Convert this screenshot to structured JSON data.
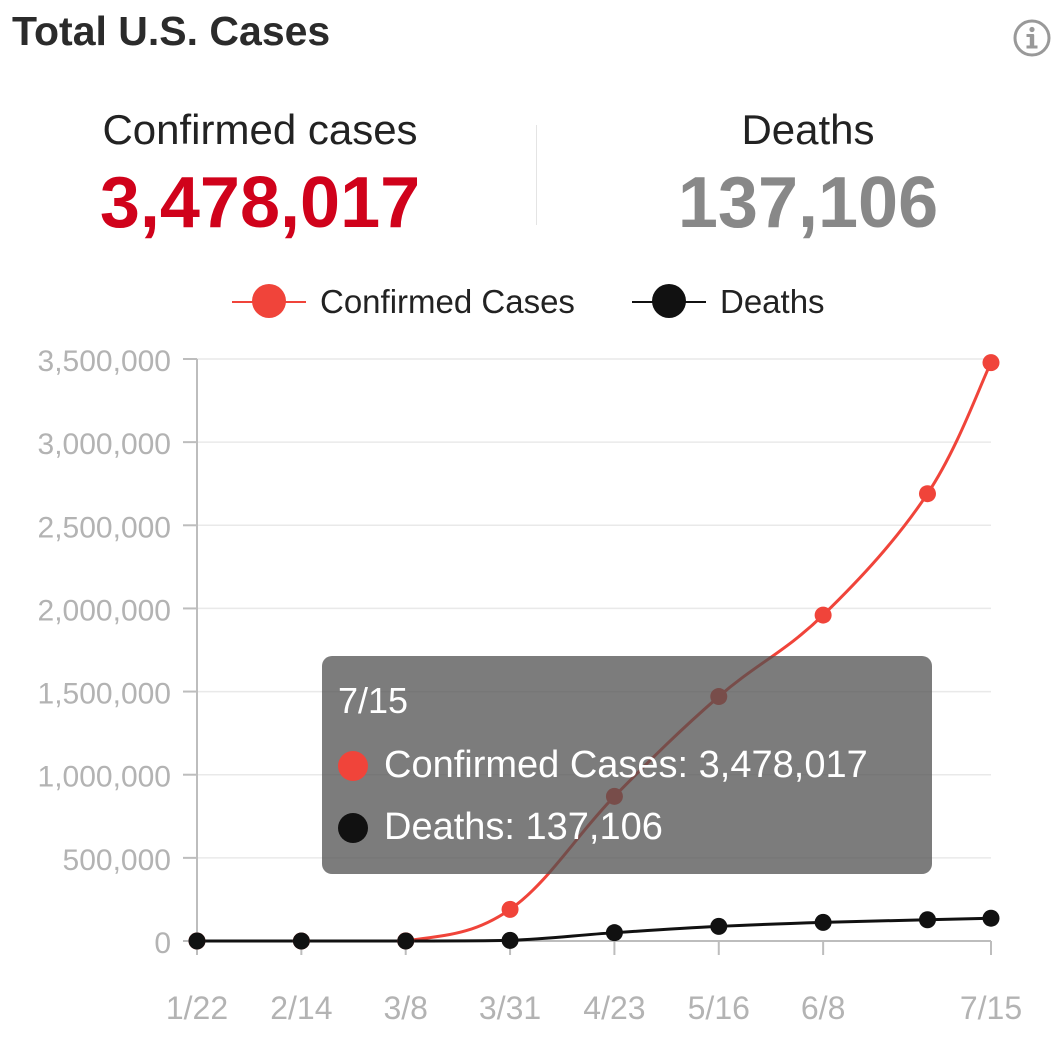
{
  "header": {
    "title": "Total U.S. Cases",
    "info_icon": "info-icon"
  },
  "stats": {
    "confirmed": {
      "label": "Confirmed cases",
      "value": "3,478,017",
      "color": "#d0021b"
    },
    "deaths": {
      "label": "Deaths",
      "value": "137,106",
      "color": "#888888"
    }
  },
  "legend": [
    {
      "label": "Confirmed Cases",
      "color": "#f0443a"
    },
    {
      "label": "Deaths",
      "color": "#111111"
    }
  ],
  "tooltip": {
    "date": "7/15",
    "rows": [
      {
        "text": "Confirmed Cases: 3,478,017",
        "color": "#f0443a"
      },
      {
        "text": "Deaths: 137,106",
        "color": "#111111"
      }
    ]
  },
  "chart_data": {
    "type": "line",
    "x_tick_labels": [
      "1/22",
      "2/14",
      "3/8",
      "3/31",
      "4/23",
      "5/16",
      "6/8",
      "7/15"
    ],
    "y_tick_labels": [
      "0",
      "500,000",
      "1,000,000",
      "1,500,000",
      "2,000,000",
      "2,500,000",
      "3,000,000",
      "3,500,000"
    ],
    "ylim": [
      0,
      3500000
    ],
    "grid": true,
    "legend_position": "top",
    "series": [
      {
        "name": "Confirmed Cases",
        "color": "#f0443a",
        "points": [
          {
            "x": "1/22",
            "y": 1
          },
          {
            "x": "2/14",
            "y": 15
          },
          {
            "x": "3/8",
            "y": 540
          },
          {
            "x": "3/31",
            "y": 190000
          },
          {
            "x": "4/23",
            "y": 870000
          },
          {
            "x": "5/16",
            "y": 1470000
          },
          {
            "x": "6/8",
            "y": 1960000
          },
          {
            "x": "7/1",
            "y": 2690000
          },
          {
            "x": "7/15",
            "y": 3478017
          }
        ]
      },
      {
        "name": "Deaths",
        "color": "#111111",
        "points": [
          {
            "x": "1/22",
            "y": 0
          },
          {
            "x": "2/14",
            "y": 0
          },
          {
            "x": "3/8",
            "y": 22
          },
          {
            "x": "3/31",
            "y": 4000
          },
          {
            "x": "4/23",
            "y": 50000
          },
          {
            "x": "5/16",
            "y": 88000
          },
          {
            "x": "6/8",
            "y": 112000
          },
          {
            "x": "7/1",
            "y": 128000
          },
          {
            "x": "7/15",
            "y": 137106
          }
        ]
      }
    ]
  }
}
